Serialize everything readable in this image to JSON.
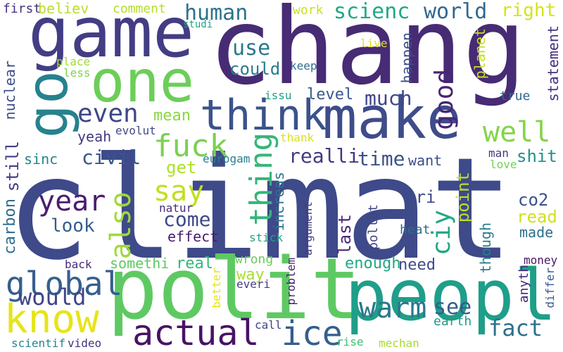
{
  "cloud": {
    "background": "#ffffff",
    "words": [
      {
        "text": "climat",
        "color": "#3e4a89"
      },
      {
        "text": "chang",
        "color": "#472b74"
      },
      {
        "text": "polit",
        "color": "#5ec962"
      },
      {
        "text": "peopl",
        "color": "#1f9e89"
      },
      {
        "text": "game",
        "color": "#433d84"
      },
      {
        "text": "make",
        "color": "#3e4c8a"
      },
      {
        "text": "one",
        "color": "#6cce59"
      },
      {
        "text": "go",
        "color": "#26828e"
      },
      {
        "text": "think",
        "color": "#3b528b"
      },
      {
        "text": "know",
        "color": "#e7e419"
      },
      {
        "text": "actual",
        "color": "#471365"
      },
      {
        "text": "ice",
        "color": "#355f8d"
      },
      {
        "text": "warm",
        "color": "#2a788e"
      },
      {
        "text": "global",
        "color": "#355e8d"
      },
      {
        "text": "well",
        "color": "#84d44b"
      },
      {
        "text": "fuck",
        "color": "#7ad151"
      },
      {
        "text": "say",
        "color": "#c2df23"
      },
      {
        "text": "thing",
        "color": "#34b679"
      },
      {
        "text": "also",
        "color": "#9fda3a"
      },
      {
        "text": "even",
        "color": "#3f4788"
      },
      {
        "text": "human",
        "color": "#2c728e"
      },
      {
        "text": "scienc",
        "color": "#22a884"
      },
      {
        "text": "world",
        "color": "#31688e"
      },
      {
        "text": "good",
        "color": "#482475"
      },
      {
        "text": "right",
        "color": "#d5e21a"
      },
      {
        "text": "year",
        "color": "#481d6f"
      },
      {
        "text": "fact",
        "color": "#2d708e"
      },
      {
        "text": "would",
        "color": "#414487"
      },
      {
        "text": "see",
        "color": "#365c8d"
      },
      {
        "text": "civil",
        "color": "#39568c"
      },
      {
        "text": "come",
        "color": "#3e4989"
      },
      {
        "text": "look",
        "color": "#355e8d"
      },
      {
        "text": "realli",
        "color": "#453781"
      },
      {
        "text": "time",
        "color": "#3b528b"
      },
      {
        "text": "use",
        "color": "#2a788e"
      },
      {
        "text": "could",
        "color": "#287c8e"
      },
      {
        "text": "much",
        "color": "#404688"
      },
      {
        "text": "level",
        "color": "#38598c"
      },
      {
        "text": "mean",
        "color": "#8bd646"
      },
      {
        "text": "yeah",
        "color": "#443a83"
      },
      {
        "text": "evolut",
        "color": "#3e4a89"
      },
      {
        "text": "get",
        "color": "#ade028"
      },
      {
        "text": "sinc",
        "color": "#25858e"
      },
      {
        "text": "still",
        "color": "#433e85"
      },
      {
        "text": "carbon",
        "color": "#2f6c8e"
      },
      {
        "text": "nuclear",
        "color": "#3d4e8a"
      },
      {
        "text": "first",
        "color": "#472f7d"
      },
      {
        "text": "believ",
        "color": "#bade28"
      },
      {
        "text": "comment",
        "color": "#b5de2b"
      },
      {
        "text": "work",
        "color": "#cae11f"
      },
      {
        "text": "studi",
        "color": "#20a386"
      },
      {
        "text": "place",
        "color": "#a0da39"
      },
      {
        "text": "less",
        "color": "#7fd34e"
      },
      {
        "text": "live",
        "color": "#dde318"
      },
      {
        "text": "keep",
        "color": "#2e6f8e"
      },
      {
        "text": "happen",
        "color": "#3e4c8a"
      },
      {
        "text": "planet",
        "color": "#c8e020"
      },
      {
        "text": "statement",
        "color": "#46307e"
      },
      {
        "text": "true",
        "color": "#31688e"
      },
      {
        "text": "issu",
        "color": "#1fa187"
      },
      {
        "text": "thank",
        "color": "#d8e219"
      },
      {
        "text": "eurogam",
        "color": "#277f8e"
      },
      {
        "text": "want",
        "color": "#3d4e8a"
      },
      {
        "text": "tri",
        "color": "#3e4a89"
      },
      {
        "text": "point",
        "color": "#bddf26"
      },
      {
        "text": "ciy",
        "color": "#22a785"
      },
      {
        "text": "man",
        "color": "#443983"
      },
      {
        "text": "love",
        "color": "#73d056"
      },
      {
        "text": "shit",
        "color": "#21918c"
      },
      {
        "text": "co2",
        "color": "#3b518b"
      },
      {
        "text": "read",
        "color": "#d0e11c"
      },
      {
        "text": "made",
        "color": "#2d708e"
      },
      {
        "text": "natur",
        "color": "#472d7b"
      },
      {
        "text": "increas",
        "color": "#2c738e"
      },
      {
        "text": "effect",
        "color": "#481a6c"
      },
      {
        "text": "stick",
        "color": "#1fa287"
      },
      {
        "text": "argument",
        "color": "#433d84"
      },
      {
        "text": "pollut",
        "color": "#424086"
      },
      {
        "text": "last",
        "color": "#482677"
      },
      {
        "text": "though",
        "color": "#287d8e"
      },
      {
        "text": "heat",
        "color": "#2f6b8e"
      },
      {
        "text": "enough",
        "color": "#22a884"
      },
      {
        "text": "need",
        "color": "#3e4a89"
      },
      {
        "text": "somethi",
        "color": "#5ec962"
      },
      {
        "text": "real",
        "color": "#32b67a"
      },
      {
        "text": "back",
        "color": "#472c7a"
      },
      {
        "text": "wrong",
        "color": "#6ccd5a"
      },
      {
        "text": "way",
        "color": "#aadc32"
      },
      {
        "text": "better",
        "color": "#e2e418"
      },
      {
        "text": "everi",
        "color": "#443b84"
      },
      {
        "text": "problem",
        "color": "#481f70"
      },
      {
        "text": "money",
        "color": "#481668"
      },
      {
        "text": "anyth",
        "color": "#482475"
      },
      {
        "text": "differ",
        "color": "#38598c"
      },
      {
        "text": "call",
        "color": "#404588"
      },
      {
        "text": "earth",
        "color": "#1e9b8a"
      },
      {
        "text": "rise",
        "color": "#3dbc74"
      },
      {
        "text": "mechan",
        "color": "#a8db34"
      },
      {
        "text": "scientif",
        "color": "#25848e"
      },
      {
        "text": "video",
        "color": "#46337f"
      }
    ]
  }
}
